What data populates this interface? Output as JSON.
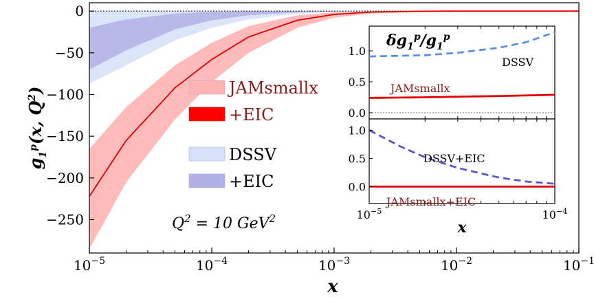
{
  "chart_data": [
    {
      "type": "area",
      "ylabel": "g_1^p(x, Q^2)",
      "xlabel": "x",
      "xscale": "log",
      "xlim": [
        1e-05,
        0.1
      ],
      "ylim": [
        -290,
        10
      ],
      "xticks": [
        "10^-5",
        "10^-4",
        "10^-3",
        "10^-2",
        "10^-1"
      ],
      "yticks": [
        0,
        -50,
        -100,
        -150,
        -200,
        -250
      ],
      "ytick_labels": [
        "0",
        "−50",
        "−100",
        "−150",
        "−200",
        "−250"
      ],
      "annotation": "Q^2 = 10 GeV^2",
      "legend": [
        {
          "label": "JAMsmallx",
          "color": "#ffb3b3",
          "text_color": "#8b1a1a"
        },
        {
          "label": "+EIC",
          "color": "#ff0000",
          "text_color": "#8b1a1a"
        },
        {
          "label": "DSSV",
          "color": "#d6e2f8",
          "text_color": "#000000"
        },
        {
          "label": "+EIC",
          "color": "#b3b0e6",
          "text_color": "#000000"
        }
      ],
      "x": [
        1e-05,
        2e-05,
        5e-05,
        0.0001,
        0.0002,
        0.0005,
        0.001,
        0.002,
        0.005,
        0.01,
        0.1
      ],
      "series": [
        {
          "name": "JAMsmallx",
          "kind": "band",
          "color": "#ffb3b3",
          "lower": [
            -285,
            -205,
            -130,
            -85,
            -50,
            -20,
            -8,
            -3,
            -1,
            -0.3,
            0
          ],
          "upper": [
            -165,
            -115,
            -65,
            -38,
            -18,
            -5,
            -1.5,
            -0.3,
            0,
            0,
            0
          ]
        },
        {
          "name": "+EIC",
          "kind": "line",
          "color": "#e00000",
          "values": [
            -222,
            -155,
            -92,
            -58,
            -31,
            -11,
            -4,
            -1.2,
            -0.2,
            0,
            0
          ]
        },
        {
          "name": "DSSV",
          "kind": "band",
          "color": "#d6e2f8",
          "lower": [
            -87,
            -65,
            -35,
            -20,
            -10,
            -3,
            -1,
            -0.3,
            0,
            0,
            0
          ],
          "upper": [
            0,
            0,
            0,
            0,
            0,
            0,
            0,
            0,
            0,
            0,
            0
          ]
        },
        {
          "name": "+EIC",
          "kind": "band",
          "color": "#b3b0e6",
          "lower": [
            -70,
            -47,
            -22,
            -11,
            -5,
            -1.5,
            -0.5,
            0,
            0,
            0,
            0
          ],
          "upper": [
            -20,
            -10,
            -3,
            -1,
            0,
            0,
            0,
            0,
            0,
            0,
            0
          ]
        }
      ]
    },
    {
      "type": "line",
      "title": "δg_1^p / g_1^p",
      "xscale": "log",
      "xlim": [
        1e-05,
        0.0001
      ],
      "ylim": [
        -0.1,
        1.4
      ],
      "yticks": [
        0.0,
        0.5,
        1.0
      ],
      "ytick_labels": [
        "0.0",
        "0.5",
        "1.0"
      ],
      "annotations": [
        "DSSV",
        "JAMsmallx"
      ],
      "x": [
        1e-05,
        2e-05,
        3e-05,
        5e-05,
        7e-05,
        0.0001
      ],
      "series": [
        {
          "name": "DSSV",
          "style": "dashed",
          "color": "#5b8fe0",
          "values": [
            0.91,
            0.93,
            0.97,
            1.05,
            1.14,
            1.3
          ]
        },
        {
          "name": "JAMsmallx",
          "style": "solid",
          "color": "#e00000",
          "values": [
            0.24,
            0.25,
            0.26,
            0.27,
            0.28,
            0.29
          ]
        },
        {
          "name": "zero",
          "style": "dotted",
          "color": "#888888",
          "values": [
            0,
            0,
            0,
            0,
            0,
            0
          ]
        }
      ]
    },
    {
      "type": "line",
      "xlabel": "x",
      "xscale": "log",
      "xlim": [
        1e-05,
        0.0001
      ],
      "xtick_labels": [
        "10^-5",
        "10^-4"
      ],
      "ylim": [
        -0.3,
        1.2
      ],
      "yticks": [
        0.0,
        0.5,
        1.0
      ],
      "ytick_labels": [
        "0.0",
        "0.5",
        "1.0"
      ],
      "annotations": [
        "DSSV+EIC",
        "JAMsmallx+EIC"
      ],
      "x": [
        1e-05,
        1.5e-05,
        2e-05,
        3e-05,
        5e-05,
        7e-05,
        0.0001
      ],
      "series": [
        {
          "name": "DSSV+EIC",
          "style": "dashed",
          "color": "#5b55c8",
          "values": [
            1.0,
            0.7,
            0.52,
            0.33,
            0.16,
            0.09,
            0.05
          ]
        },
        {
          "name": "JAMsmallx+EIC",
          "style": "solid",
          "color": "#e00000",
          "values": [
            0.0,
            0.0,
            0.0,
            0.0,
            0.0,
            0.0,
            0.0
          ]
        }
      ]
    }
  ]
}
